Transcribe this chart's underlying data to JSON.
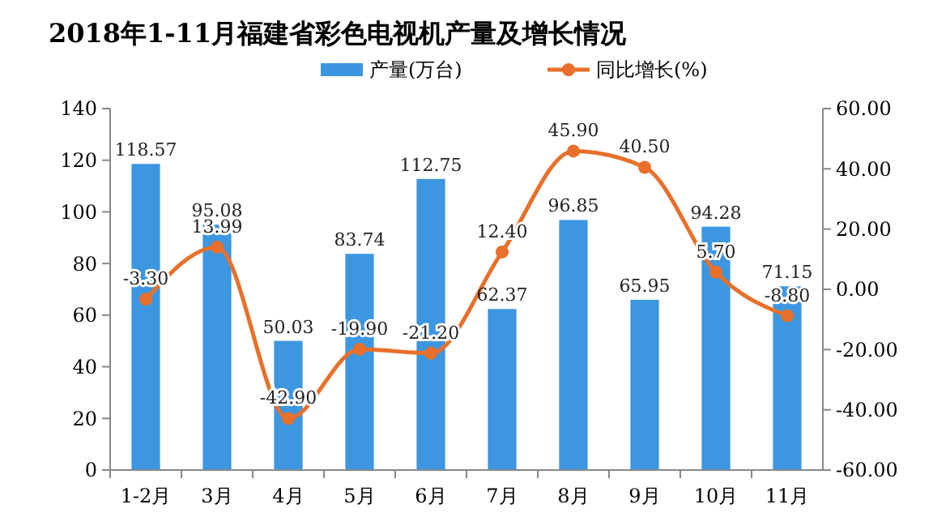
{
  "chart_data": {
    "type": "bar",
    "title": "2018年1-11月福建省彩色电视机产量及增长情况",
    "categories": [
      "1-2月",
      "3月",
      "4月",
      "5月",
      "6月",
      "7月",
      "8月",
      "9月",
      "10月",
      "11月"
    ],
    "series": [
      {
        "name": "产量(万台)",
        "color": "#3d96e0",
        "values": [
          118.57,
          95.08,
          50.03,
          83.74,
          112.75,
          62.37,
          96.85,
          65.95,
          94.28,
          71.15
        ],
        "value_labels": [
          "118.57",
          "95.08",
          "50.03",
          "83.74",
          "112.75",
          "62.37",
          "96.85",
          "65.95",
          "94.28",
          "71.15"
        ]
      },
      {
        "name": "同比增长(%)",
        "type": "line",
        "axis": "y2",
        "color": "#e8702a",
        "marker": "circle",
        "values": [
          -3.3,
          13.99,
          -42.9,
          -19.9,
          -21.2,
          12.4,
          45.9,
          40.5,
          5.7,
          -8.8
        ],
        "value_labels": [
          "-3.30",
          "13.99",
          "-42.90",
          "-19.90",
          "-21.20",
          "12.40",
          "45.90",
          "40.50",
          "5.70",
          "-8.80"
        ]
      }
    ],
    "ylim": [
      0,
      140
    ],
    "yticks": [
      0,
      20,
      40,
      60,
      80,
      100,
      120,
      140
    ],
    "y2lim": [
      -60,
      60
    ],
    "y2ticks": [
      {
        "value": -60,
        "label": "-60.00"
      },
      {
        "value": -40,
        "label": "-40.00"
      },
      {
        "value": -20,
        "label": "-20.00"
      },
      {
        "value": 0,
        "label": "0.00"
      },
      {
        "value": 20,
        "label": "20.00"
      },
      {
        "value": 40,
        "label": "40.00"
      },
      {
        "value": 60,
        "label": "60.00"
      }
    ],
    "legend": "top",
    "grid": false
  }
}
